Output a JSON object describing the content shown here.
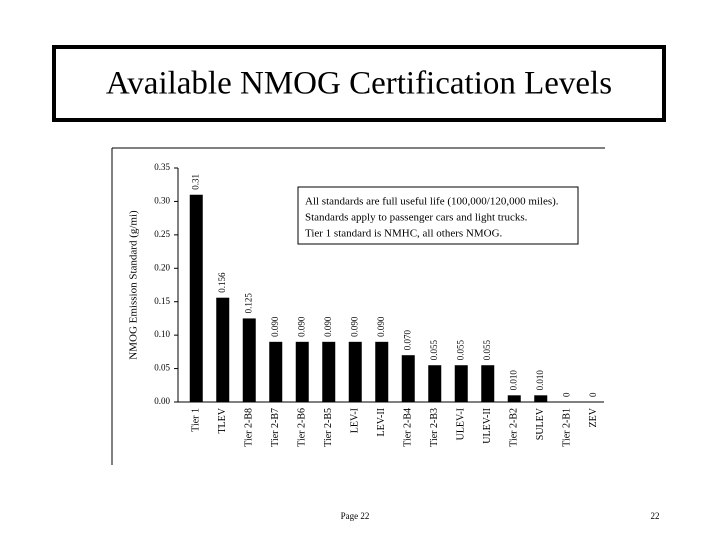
{
  "slide": {
    "title": "Available NMOG Certification Levels",
    "footer": "Page 22",
    "page_number": "22"
  },
  "chart_data": {
    "type": "bar",
    "y_label": "NMOG Emission Standard (g/mi)",
    "annotation": [
      "All standards are full useful life (100,000/120,000 miles).",
      "Standards apply to passenger cars and light trucks.",
      "Tier 1 standard is NMHC, all others NMOG."
    ],
    "categories": [
      "Tier 1",
      "TLEV",
      "Tier 2-B8",
      "Tier 2-B7",
      "Tier 2-B6",
      "Tier 2-B5",
      "LEV-I",
      "LEV-II",
      "Tier 2-B4",
      "Tier 2-B3",
      "ULEV-I",
      "ULEV-II",
      "Tier 2-B2",
      "SULEV",
      "Tier 2-B1",
      "ZEV"
    ],
    "values": [
      0.31,
      0.156,
      0.125,
      0.09,
      0.09,
      0.09,
      0.09,
      0.09,
      0.07,
      0.055,
      0.055,
      0.055,
      0.01,
      0.01,
      0,
      0
    ],
    "value_labels": [
      "0.31",
      "0.156",
      "0.125",
      "0.090",
      "0.090",
      "0.090",
      "0.090",
      "0.090",
      "0.070",
      "0.055",
      "0.055",
      "0.055",
      "0.010",
      "0.010",
      "0",
      "0"
    ],
    "color": "#000000",
    "ylim": [
      0,
      0.35
    ],
    "yticks": [
      {
        "value": 0,
        "label": "0.00"
      },
      {
        "value": 0.05,
        "label": "0.05"
      },
      {
        "value": 0.1,
        "label": "0.10"
      },
      {
        "value": 0.15,
        "label": "0.15"
      },
      {
        "value": 0.2,
        "label": "0.20"
      },
      {
        "value": 0.25,
        "label": "0.25"
      },
      {
        "value": 0.3,
        "label": "0.30"
      },
      {
        "value": 0.35,
        "label": "0.35"
      }
    ]
  }
}
